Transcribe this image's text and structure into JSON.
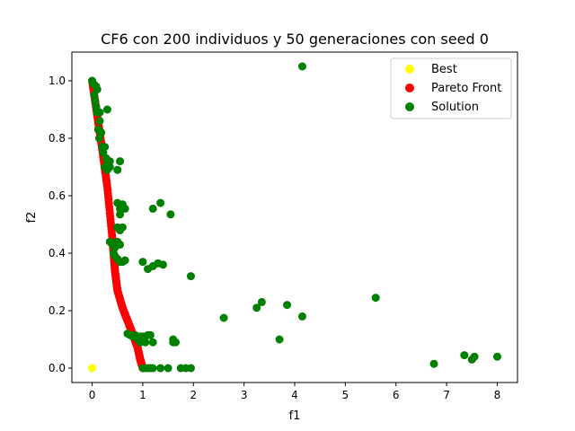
{
  "chart_data": {
    "type": "scatter",
    "title": "CF6 con 200 individuos y 50 generaciones con seed 0",
    "xlabel": "f1",
    "ylabel": "f2",
    "xlim": [
      -0.4,
      8.4
    ],
    "ylim": [
      -0.05,
      1.1
    ],
    "xticks": [
      "0",
      "1",
      "2",
      "3",
      "4",
      "5",
      "6",
      "7",
      "8"
    ],
    "yticks": [
      "0.0",
      "0.2",
      "0.4",
      "0.6",
      "0.8",
      "1.0"
    ],
    "grid": false,
    "legend_position": "top-right",
    "series": [
      {
        "name": "Best",
        "color": "#ffff00",
        "points": [
          [
            0.0,
            0.0
          ]
        ]
      },
      {
        "name": "Pareto Front",
        "color": "#ff0000",
        "curve": "piecewise",
        "knots": [
          [
            0.0,
            1.0
          ],
          [
            0.1,
            0.88
          ],
          [
            0.2,
            0.76
          ],
          [
            0.3,
            0.63
          ],
          [
            0.4,
            0.45
          ],
          [
            0.45,
            0.34
          ],
          [
            0.5,
            0.27
          ],
          [
            0.6,
            0.21
          ],
          [
            0.7,
            0.165
          ],
          [
            0.8,
            0.12
          ],
          [
            0.9,
            0.07
          ],
          [
            0.95,
            0.03
          ],
          [
            1.0,
            0.0
          ]
        ]
      },
      {
        "name": "Solution",
        "color": "#008000",
        "points": [
          [
            0.0,
            1.0
          ],
          [
            0.02,
            0.99
          ],
          [
            0.05,
            0.985
          ],
          [
            0.08,
            0.98
          ],
          [
            0.1,
            0.97
          ],
          [
            0.04,
            0.95
          ],
          [
            0.06,
            0.93
          ],
          [
            0.08,
            0.91
          ],
          [
            0.1,
            0.89
          ],
          [
            0.15,
            0.89
          ],
          [
            0.3,
            0.9
          ],
          [
            0.15,
            0.86
          ],
          [
            0.12,
            0.83
          ],
          [
            0.18,
            0.82
          ],
          [
            0.14,
            0.8
          ],
          [
            0.2,
            0.77
          ],
          [
            0.25,
            0.77
          ],
          [
            0.22,
            0.75
          ],
          [
            0.28,
            0.73
          ],
          [
            0.3,
            0.72
          ],
          [
            0.35,
            0.72
          ],
          [
            0.55,
            0.72
          ],
          [
            0.25,
            0.7
          ],
          [
            0.3,
            0.69
          ],
          [
            0.35,
            0.7
          ],
          [
            0.5,
            0.69
          ],
          [
            0.5,
            0.575
          ],
          [
            0.6,
            0.57
          ],
          [
            0.55,
            0.555
          ],
          [
            0.65,
            0.555
          ],
          [
            0.55,
            0.535
          ],
          [
            0.6,
            0.49
          ],
          [
            0.5,
            0.49
          ],
          [
            0.55,
            0.48
          ],
          [
            0.35,
            0.44
          ],
          [
            0.4,
            0.43
          ],
          [
            0.45,
            0.42
          ],
          [
            0.5,
            0.44
          ],
          [
            0.55,
            0.43
          ],
          [
            0.42,
            0.4
          ],
          [
            0.45,
            0.39
          ],
          [
            0.5,
            0.38
          ],
          [
            0.55,
            0.37
          ],
          [
            0.6,
            0.37
          ],
          [
            0.65,
            0.375
          ],
          [
            1.0,
            0.37
          ],
          [
            1.1,
            0.345
          ],
          [
            1.2,
            0.355
          ],
          [
            1.3,
            0.365
          ],
          [
            1.4,
            0.36
          ],
          [
            1.2,
            0.555
          ],
          [
            1.35,
            0.575
          ],
          [
            1.55,
            0.535
          ],
          [
            1.95,
            0.32
          ],
          [
            0.7,
            0.12
          ],
          [
            0.75,
            0.115
          ],
          [
            0.8,
            0.11
          ],
          [
            0.85,
            0.115
          ],
          [
            0.9,
            0.1
          ],
          [
            0.95,
            0.11
          ],
          [
            1.0,
            0.11
          ],
          [
            1.1,
            0.115
          ],
          [
            1.15,
            0.115
          ],
          [
            1.2,
            0.09
          ],
          [
            0.95,
            0.09
          ],
          [
            1.05,
            0.09
          ],
          [
            1.0,
            0.0
          ],
          [
            1.05,
            0.0
          ],
          [
            1.1,
            0.0
          ],
          [
            1.15,
            0.0
          ],
          [
            1.2,
            0.0
          ],
          [
            1.35,
            0.0
          ],
          [
            1.5,
            0.0
          ],
          [
            1.6,
            0.09
          ],
          [
            1.65,
            0.09
          ],
          [
            1.6,
            0.1
          ],
          [
            1.75,
            0.0
          ],
          [
            1.85,
            0.0
          ],
          [
            1.95,
            0.0
          ],
          [
            2.6,
            0.175
          ],
          [
            3.25,
            0.21
          ],
          [
            3.35,
            0.23
          ],
          [
            3.7,
            0.1
          ],
          [
            3.85,
            0.22
          ],
          [
            4.15,
            0.18
          ],
          [
            4.15,
            1.05
          ],
          [
            5.6,
            0.245
          ],
          [
            6.75,
            0.015
          ],
          [
            7.35,
            0.045
          ],
          [
            7.5,
            0.03
          ],
          [
            7.55,
            0.04
          ],
          [
            8.0,
            0.04
          ]
        ]
      }
    ]
  }
}
